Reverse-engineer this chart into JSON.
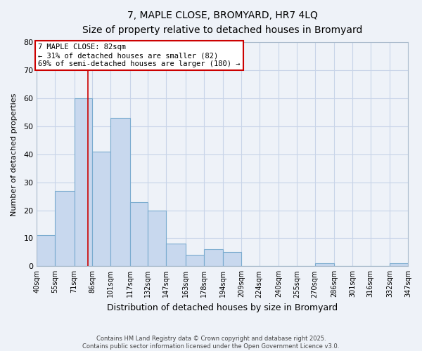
{
  "title": "7, MAPLE CLOSE, BROMYARD, HR7 4LQ",
  "subtitle": "Size of property relative to detached houses in Bromyard",
  "xlabel": "Distribution of detached houses by size in Bromyard",
  "ylabel": "Number of detached properties",
  "bar_color": "#c8d8ee",
  "bar_edge_color": "#7aabcf",
  "vline_color": "#cc0000",
  "vline_x": 82,
  "bin_edges": [
    40,
    55,
    71,
    86,
    101,
    117,
    132,
    147,
    163,
    178,
    194,
    209,
    224,
    240,
    255,
    270,
    286,
    301,
    316,
    332,
    347
  ],
  "bin_labels": [
    "40sqm",
    "55sqm",
    "71sqm",
    "86sqm",
    "101sqm",
    "117sqm",
    "132sqm",
    "147sqm",
    "163sqm",
    "178sqm",
    "194sqm",
    "209sqm",
    "224sqm",
    "240sqm",
    "255sqm",
    "270sqm",
    "286sqm",
    "301sqm",
    "316sqm",
    "332sqm",
    "347sqm"
  ],
  "counts": [
    11,
    27,
    60,
    41,
    53,
    23,
    20,
    8,
    4,
    6,
    5,
    0,
    0,
    0,
    0,
    1,
    0,
    0,
    0,
    1
  ],
  "ylim": [
    0,
    80
  ],
  "yticks": [
    0,
    10,
    20,
    30,
    40,
    50,
    60,
    70,
    80
  ],
  "annotation_title": "7 MAPLE CLOSE: 82sqm",
  "annotation_line1": "← 31% of detached houses are smaller (82)",
  "annotation_line2": "69% of semi-detached houses are larger (180) →",
  "annotation_box_color": "white",
  "annotation_box_edge": "#cc0000",
  "footer1": "Contains HM Land Registry data © Crown copyright and database right 2025.",
  "footer2": "Contains public sector information licensed under the Open Government Licence v3.0.",
  "background_color": "#eef2f8",
  "grid_color": "#c8d4e8",
  "spine_color": "#aabbcc"
}
